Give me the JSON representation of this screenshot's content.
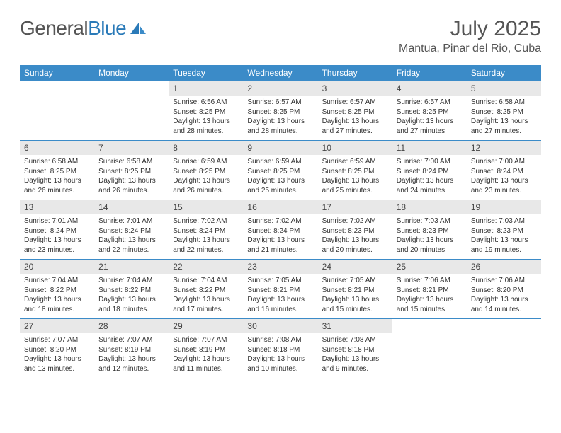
{
  "logo": {
    "text1": "General",
    "text2": "Blue"
  },
  "month": "July 2025",
  "location": "Mantua, Pinar del Rio, Cuba",
  "weekdays": [
    "Sunday",
    "Monday",
    "Tuesday",
    "Wednesday",
    "Thursday",
    "Friday",
    "Saturday"
  ],
  "colors": {
    "header_bg": "#3b8bc8",
    "header_fg": "#ffffff",
    "daynum_bg": "#e8e8e8",
    "text": "#333333",
    "logo_gray": "#555555",
    "logo_blue": "#2a7ab8"
  },
  "layout": {
    "first_weekday_index": 2,
    "days_in_month": 31,
    "rows": 5,
    "cols": 7
  },
  "days": {
    "1": {
      "sunrise": "6:56 AM",
      "sunset": "8:25 PM",
      "daylight": "13 hours and 28 minutes."
    },
    "2": {
      "sunrise": "6:57 AM",
      "sunset": "8:25 PM",
      "daylight": "13 hours and 28 minutes."
    },
    "3": {
      "sunrise": "6:57 AM",
      "sunset": "8:25 PM",
      "daylight": "13 hours and 27 minutes."
    },
    "4": {
      "sunrise": "6:57 AM",
      "sunset": "8:25 PM",
      "daylight": "13 hours and 27 minutes."
    },
    "5": {
      "sunrise": "6:58 AM",
      "sunset": "8:25 PM",
      "daylight": "13 hours and 27 minutes."
    },
    "6": {
      "sunrise": "6:58 AM",
      "sunset": "8:25 PM",
      "daylight": "13 hours and 26 minutes."
    },
    "7": {
      "sunrise": "6:58 AM",
      "sunset": "8:25 PM",
      "daylight": "13 hours and 26 minutes."
    },
    "8": {
      "sunrise": "6:59 AM",
      "sunset": "8:25 PM",
      "daylight": "13 hours and 26 minutes."
    },
    "9": {
      "sunrise": "6:59 AM",
      "sunset": "8:25 PM",
      "daylight": "13 hours and 25 minutes."
    },
    "10": {
      "sunrise": "6:59 AM",
      "sunset": "8:25 PM",
      "daylight": "13 hours and 25 minutes."
    },
    "11": {
      "sunrise": "7:00 AM",
      "sunset": "8:24 PM",
      "daylight": "13 hours and 24 minutes."
    },
    "12": {
      "sunrise": "7:00 AM",
      "sunset": "8:24 PM",
      "daylight": "13 hours and 23 minutes."
    },
    "13": {
      "sunrise": "7:01 AM",
      "sunset": "8:24 PM",
      "daylight": "13 hours and 23 minutes."
    },
    "14": {
      "sunrise": "7:01 AM",
      "sunset": "8:24 PM",
      "daylight": "13 hours and 22 minutes."
    },
    "15": {
      "sunrise": "7:02 AM",
      "sunset": "8:24 PM",
      "daylight": "13 hours and 22 minutes."
    },
    "16": {
      "sunrise": "7:02 AM",
      "sunset": "8:24 PM",
      "daylight": "13 hours and 21 minutes."
    },
    "17": {
      "sunrise": "7:02 AM",
      "sunset": "8:23 PM",
      "daylight": "13 hours and 20 minutes."
    },
    "18": {
      "sunrise": "7:03 AM",
      "sunset": "8:23 PM",
      "daylight": "13 hours and 20 minutes."
    },
    "19": {
      "sunrise": "7:03 AM",
      "sunset": "8:23 PM",
      "daylight": "13 hours and 19 minutes."
    },
    "20": {
      "sunrise": "7:04 AM",
      "sunset": "8:22 PM",
      "daylight": "13 hours and 18 minutes."
    },
    "21": {
      "sunrise": "7:04 AM",
      "sunset": "8:22 PM",
      "daylight": "13 hours and 18 minutes."
    },
    "22": {
      "sunrise": "7:04 AM",
      "sunset": "8:22 PM",
      "daylight": "13 hours and 17 minutes."
    },
    "23": {
      "sunrise": "7:05 AM",
      "sunset": "8:21 PM",
      "daylight": "13 hours and 16 minutes."
    },
    "24": {
      "sunrise": "7:05 AM",
      "sunset": "8:21 PM",
      "daylight": "13 hours and 15 minutes."
    },
    "25": {
      "sunrise": "7:06 AM",
      "sunset": "8:21 PM",
      "daylight": "13 hours and 15 minutes."
    },
    "26": {
      "sunrise": "7:06 AM",
      "sunset": "8:20 PM",
      "daylight": "13 hours and 14 minutes."
    },
    "27": {
      "sunrise": "7:07 AM",
      "sunset": "8:20 PM",
      "daylight": "13 hours and 13 minutes."
    },
    "28": {
      "sunrise": "7:07 AM",
      "sunset": "8:19 PM",
      "daylight": "13 hours and 12 minutes."
    },
    "29": {
      "sunrise": "7:07 AM",
      "sunset": "8:19 PM",
      "daylight": "13 hours and 11 minutes."
    },
    "30": {
      "sunrise": "7:08 AM",
      "sunset": "8:18 PM",
      "daylight": "13 hours and 10 minutes."
    },
    "31": {
      "sunrise": "7:08 AM",
      "sunset": "8:18 PM",
      "daylight": "13 hours and 9 minutes."
    }
  },
  "labels": {
    "sunrise": "Sunrise:",
    "sunset": "Sunset:",
    "daylight": "Daylight:"
  }
}
